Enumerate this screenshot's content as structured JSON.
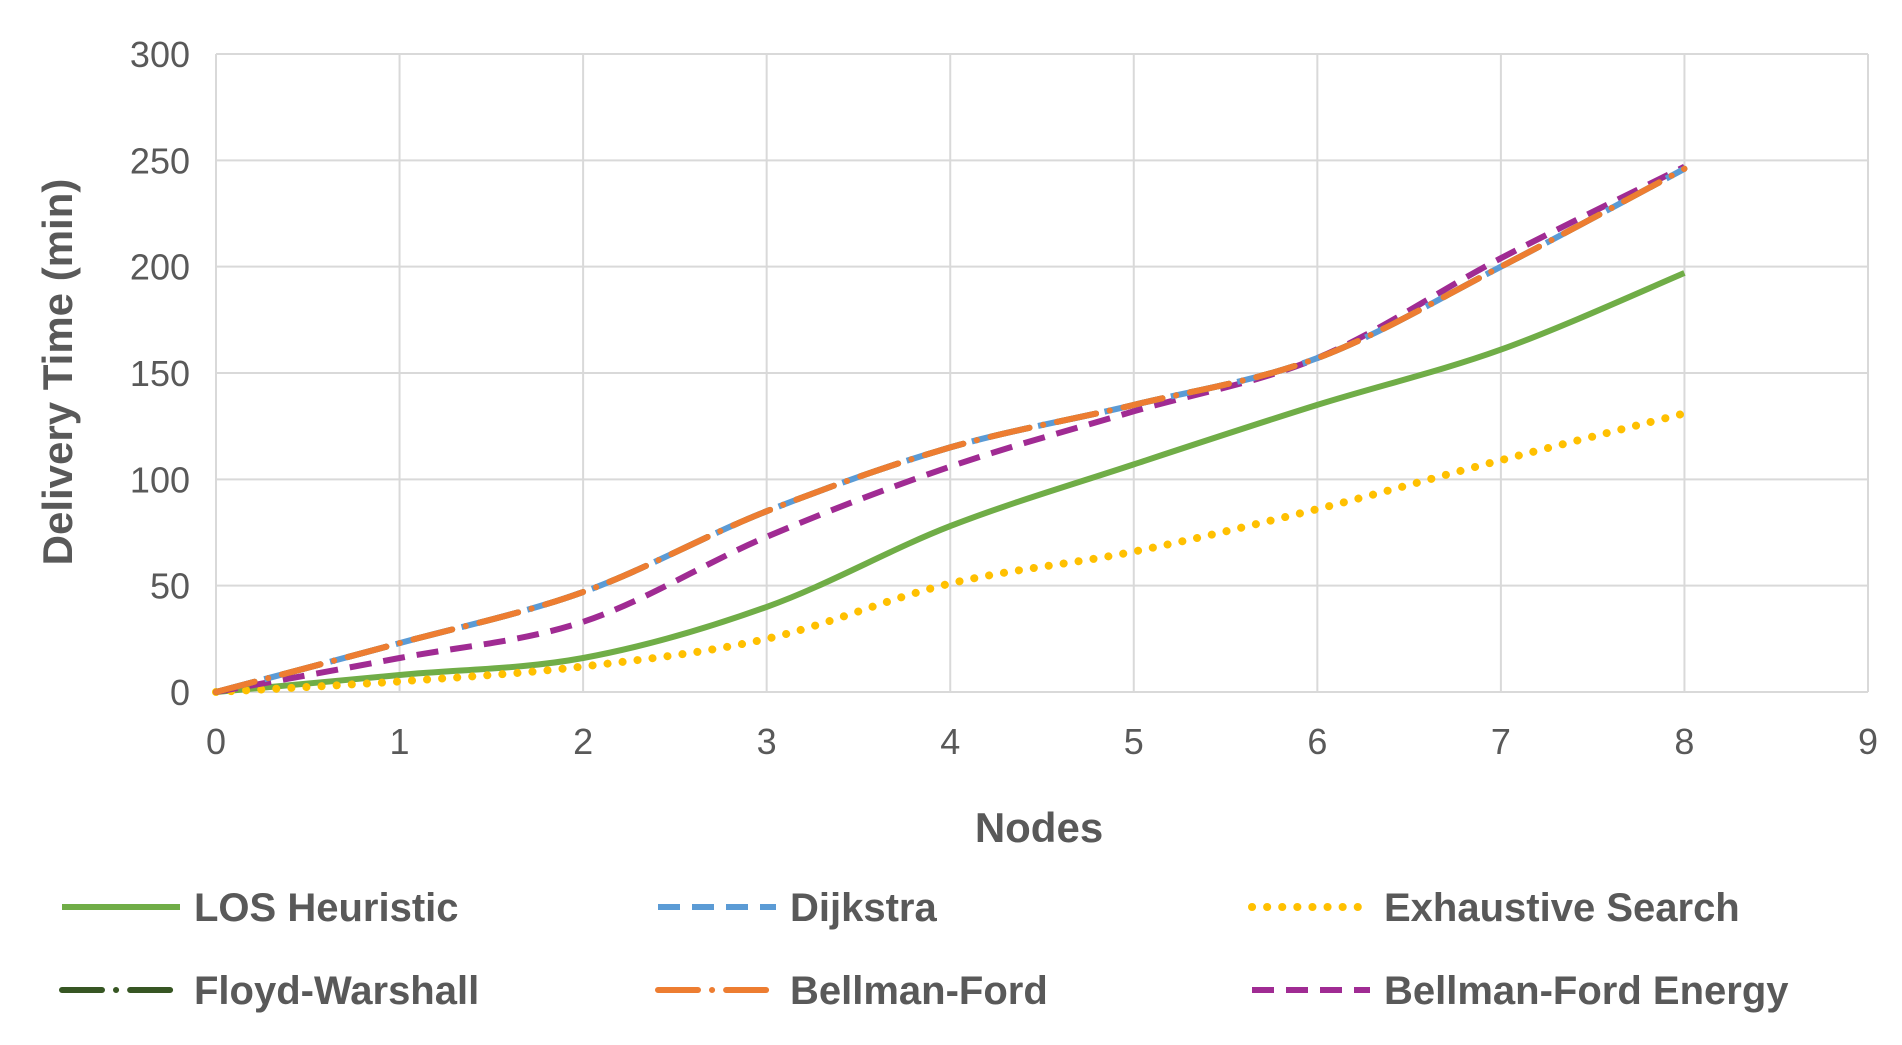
{
  "chart_data": {
    "type": "line",
    "title": "",
    "xlabel": "Nodes",
    "ylabel": "Delivery Time (min)",
    "xlim": [
      0,
      9
    ],
    "ylim": [
      0,
      300
    ],
    "xticks": [
      0,
      1,
      2,
      3,
      4,
      5,
      6,
      7,
      8,
      9
    ],
    "yticks": [
      0,
      50,
      100,
      150,
      200,
      250,
      300
    ],
    "grid": true,
    "legend_position": "bottom",
    "x": [
      0,
      1,
      2,
      3,
      4,
      5,
      6,
      7,
      8
    ],
    "series": [
      {
        "name": "LOS Heuristic",
        "style": "solid",
        "color": "#70AD47",
        "values": [
          0,
          8,
          16,
          40,
          78,
          107,
          135,
          161,
          197
        ]
      },
      {
        "name": "Dijkstra",
        "style": "dash",
        "color": "#5B9BD5",
        "values": [
          0,
          23,
          47,
          85,
          115,
          135,
          157,
          200,
          246
        ]
      },
      {
        "name": "Exhaustive Search",
        "style": "dot",
        "color": "#FFC000",
        "values": [
          0,
          5,
          12,
          25,
          51,
          66,
          86,
          109,
          131
        ]
      },
      {
        "name": "Floyd-Warshall",
        "style": "long-dash-dot",
        "color": "#375623",
        "values": [
          0,
          23,
          47,
          85,
          115,
          135,
          157,
          200,
          246
        ]
      },
      {
        "name": "Bellman-Ford",
        "style": "long-dash-dot",
        "color": "#ED7D31",
        "values": [
          0,
          23,
          47,
          85,
          115,
          135,
          157,
          200,
          246
        ]
      },
      {
        "name": "Bellman-Ford Energy",
        "style": "dash",
        "color": "#A02B93",
        "values": [
          0,
          16,
          33,
          73,
          106,
          132,
          157,
          204,
          247
        ]
      }
    ]
  }
}
